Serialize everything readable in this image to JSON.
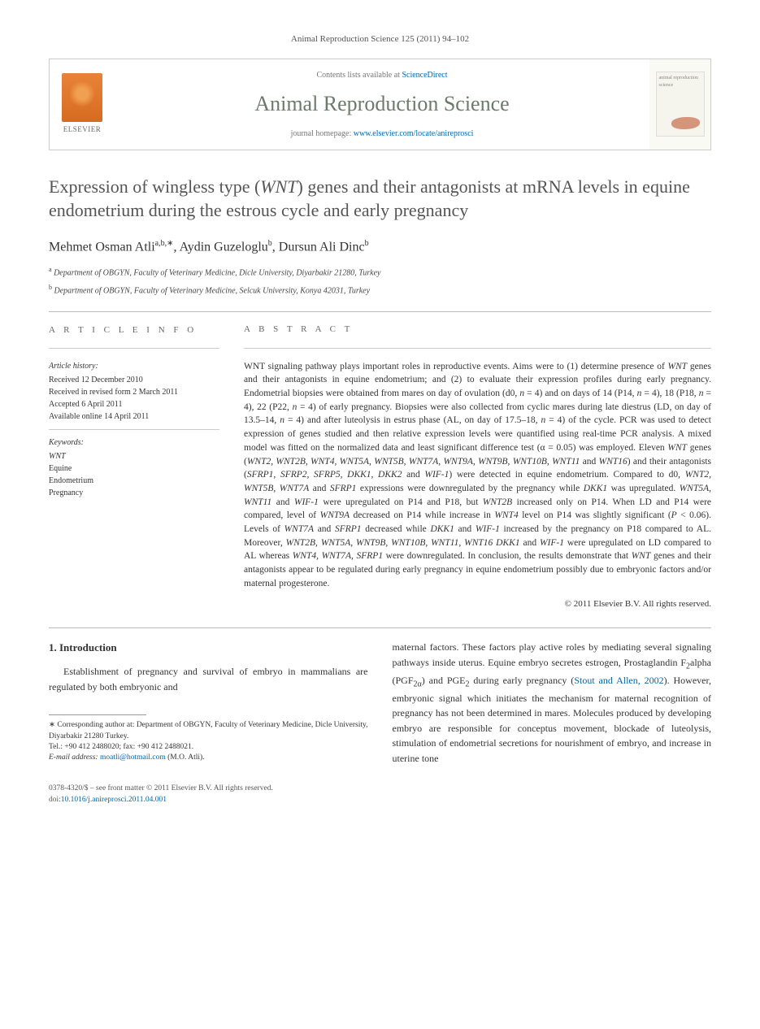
{
  "header": {
    "citation": "Animal Reproduction Science 125 (2011) 94–102",
    "contents_prefix": "Contents lists available at ",
    "contents_link": "ScienceDirect",
    "journal_name": "Animal Reproduction Science",
    "homepage_prefix": "journal homepage: ",
    "homepage_url": "www.elsevier.com/locate/anireprosci",
    "publisher": "ELSEVIER",
    "thumb_text": "animal reproduction science"
  },
  "article": {
    "title_html": "Expression of wingless type (<em>WNT</em>) genes and their antagonists at mRNA levels in equine endometrium during the estrous cycle and early pregnancy",
    "authors_html": "Mehmet Osman Atli<sup>a,b,∗</sup>, Aydin Guzeloglu<sup>b</sup>, Dursun Ali Dinc<sup>b</sup>",
    "affiliations": [
      {
        "sup": "a",
        "text": "Department of OBGYN, Faculty of Veterinary Medicine, Dicle University, Diyarbakir 21280, Turkey"
      },
      {
        "sup": "b",
        "text": "Department of OBGYN, Faculty of Veterinary Medicine, Selcuk University, Konya 42031, Turkey"
      }
    ]
  },
  "info": {
    "article_info_label": "A R T I C L E   I N F O",
    "abstract_label": "A B S T R A C T",
    "history_title": "Article history:",
    "history": [
      "Received 12 December 2010",
      "Received in revised form 2 March 2011",
      "Accepted 6 April 2011",
      "Available online 14 April 2011"
    ],
    "keywords_title": "Keywords:",
    "keywords": [
      "WNT",
      "Equine",
      "Endometrium",
      "Pregnancy"
    ]
  },
  "abstract": {
    "text_html": "WNT signaling pathway plays important roles in reproductive events. Aims were to (1) determine presence of <em>WNT</em> genes and their antagonists in equine endometrium; and (2) to evaluate their expression profiles during early pregnancy. Endometrial biopsies were obtained from mares on day of ovulation (d0, <em>n</em> = 4) and on days of 14 (P14, <em>n</em> = 4), 18 (P18, <em>n</em> = 4), 22 (P22, <em>n</em> = 4) of early pregnancy. Biopsies were also collected from cyclic mares during late diestrus (LD, on day of 13.5–14, <em>n</em> = 4) and after luteolysis in estrus phase (AL, on day of 17.5–18, <em>n</em> = 4) of the cycle. PCR was used to detect expression of genes studied and then relative expression levels were quantified using real-time PCR analysis. A mixed model was fitted on the normalized data and least significant difference test (α = 0.05) was employed. Eleven <em>WNT</em> genes (<em>WNT2, WNT2B, WNT4, WNT5A, WNT5B, WNT7A, WNT9A, WNT9B, WNT10B, WNT11</em> and <em>WNT16</em>) and their antagonists (<em>SFRP1, SFRP2, SFRP5, DKK1, DKK2</em> and <em>WIF-1</em>) were detected in equine endometrium. Compared to d0, <em>WNT2, WNT5B, WNT7A</em> and <em>SFRP1</em> expressions were downregulated by the pregnancy while <em>DKK1</em> was upregulated. <em>WNT5A, WNT11</em> and <em>WIF-1</em> were upregulated on P14 and P18, but <em>WNT2B</em> increased only on P14. When LD and P14 were compared, level of <em>WNT9A</em> decreased on P14 while increase in <em>WNT4</em> level on P14 was slightly significant (<em>P</em> < 0.06). Levels of <em>WNT7A</em> and <em>SFRP1</em> decreased while <em>DKK1</em> and <em>WIF-1</em> increased by the pregnancy on P18 compared to AL. Moreover, <em>WNT2B, WNT5A, WNT9B, WNT10B, WNT11, WNT16 DKK1</em> and <em>WIF-1</em> were upregulated on LD compared to AL whereas <em>WNT4, WNT7A, SFRP1</em> were downregulated. In conclusion, the results demonstrate that <em>WNT</em> genes and their antagonists appear to be regulated during early pregnancy in equine endometrium possibly due to embryonic factors and/or maternal progesterone.",
    "copyright": "© 2011 Elsevier B.V. All rights reserved."
  },
  "body": {
    "section_heading": "1. Introduction",
    "left_para": "Establishment of pregnancy and survival of embryo in mammalians are regulated by both embryonic and",
    "right_para_html": "maternal factors. These factors play active roles by mediating several signaling pathways inside uterus. Equine embryo secretes estrogen, Prostaglandin F<sub>2</sub>alpha (PGF<sub>2α</sub>) and PGE<sub>2</sub> during early pregnancy (<a class=\"ref-link\" href=\"#\">Stout and Allen, 2002</a>). However, embryonic signal which initiates the mechanism for maternal recognition of pregnancy has not been determined in mares. Molecules produced by developing embryo are responsible for conceptus movement, blockade of luteolysis, stimulation of endometrial secretions for nourishment of embryo, and increase in uterine tone"
  },
  "footnote": {
    "corresponding": "∗ Corresponding author at: Department of OBGYN, Faculty of Veterinary Medicine, Dicle University, Diyarbakir 21280 Turkey.",
    "tel": "Tel.: +90 412 2488020; fax: +90 412 2488021.",
    "email_label": "E-mail address:",
    "email": "moatli@hotmail.com",
    "email_name": "(M.O. Atli)."
  },
  "footer": {
    "line1": "0378-4320/$ – see front matter © 2011 Elsevier B.V. All rights reserved.",
    "doi_prefix": "doi:",
    "doi": "10.1016/j.anireprosci.2011.04.001"
  },
  "colors": {
    "link": "#0066aa",
    "journal_title": "#6b7a6b",
    "text": "#333333",
    "muted": "#777777",
    "rule": "#bbbbbb"
  }
}
